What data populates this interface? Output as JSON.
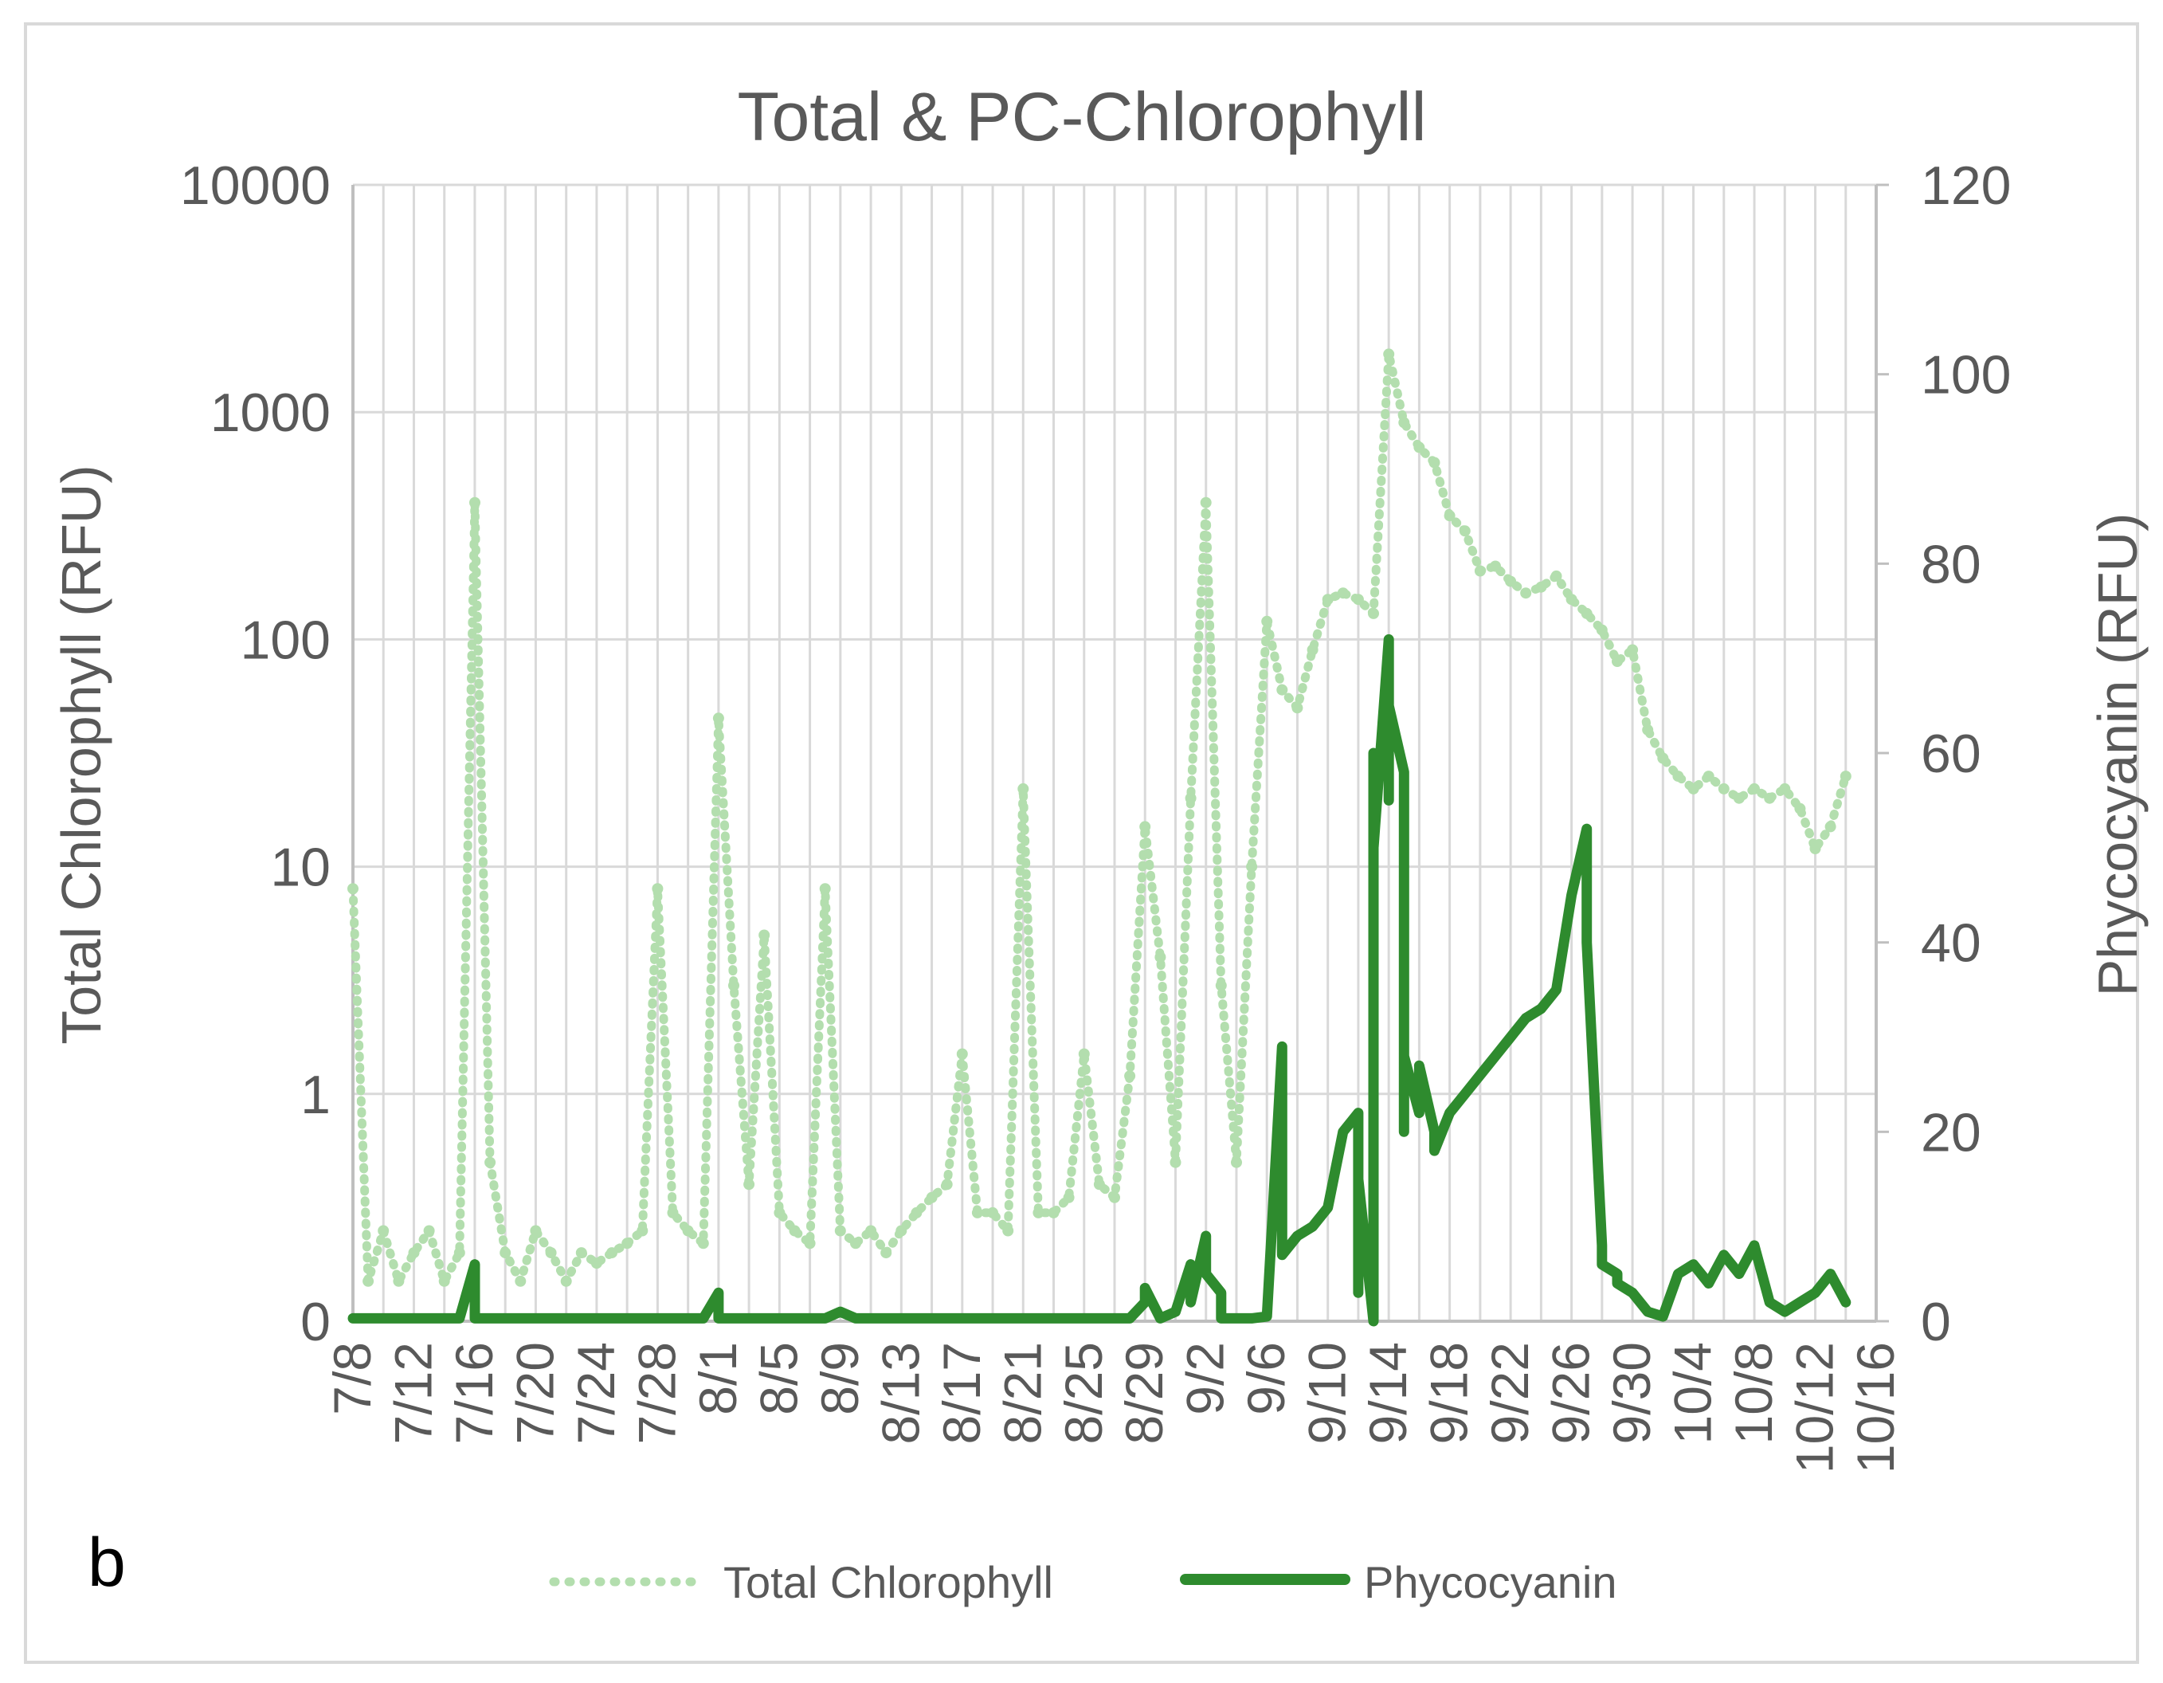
{
  "chart_data": {
    "type": "line",
    "title": "Total & PC-Chlorophyll",
    "panel_label": "b",
    "ylabel": "Total Chlorophyll (RFU)",
    "y2label": "Phycocyanin (RFU)",
    "y_scale": "log",
    "y_ticks": [
      "0",
      "1",
      "10",
      "100",
      "1000",
      "10000"
    ],
    "y2_ticks": [
      "0",
      "20",
      "40",
      "60",
      "80",
      "100",
      "120"
    ],
    "y2lim": [
      0,
      120
    ],
    "x_ticks": [
      "7/8",
      "7/12",
      "7/16",
      "7/20",
      "7/24",
      "7/28",
      "8/1",
      "8/5",
      "8/9",
      "8/13",
      "8/17",
      "8/21",
      "8/25",
      "8/29",
      "9/2",
      "9/6",
      "9/10",
      "9/14",
      "9/18",
      "9/22",
      "9/26",
      "9/30",
      "10/4",
      "10/8",
      "10/12",
      "10/16"
    ],
    "grid": true,
    "legend_position": "bottom",
    "colors": {
      "total_chlorophyll": "#b3deae",
      "phycocyanin": "#2e8b2e"
    },
    "series": [
      {
        "name": "Total Chlorophyll",
        "axis": "left",
        "style": "dotted",
        "x": [
          "7/8",
          "7/9",
          "7/10",
          "7/11",
          "7/12",
          "7/13",
          "7/14",
          "7/15",
          "7/16",
          "7/17",
          "7/18",
          "7/19",
          "7/20",
          "7/21",
          "7/22",
          "7/23",
          "7/24",
          "7/25",
          "7/26",
          "7/27",
          "7/28",
          "7/29",
          "7/30",
          "7/31",
          "8/1",
          "8/2",
          "8/3",
          "8/4",
          "8/5",
          "8/6",
          "8/7",
          "8/8",
          "8/9",
          "8/10",
          "8/11",
          "8/12",
          "8/13",
          "8/14",
          "8/15",
          "8/16",
          "8/17",
          "8/18",
          "8/19",
          "8/20",
          "8/21",
          "8/22",
          "8/23",
          "8/24",
          "8/25",
          "8/26",
          "8/27",
          "8/28",
          "8/29",
          "8/30",
          "8/31",
          "9/1",
          "9/2",
          "9/3",
          "9/4",
          "9/5",
          "9/6",
          "9/7",
          "9/8",
          "9/9",
          "9/10",
          "9/11",
          "9/12",
          "9/13",
          "9/14",
          "9/15",
          "9/16",
          "9/17",
          "9/18",
          "9/19",
          "9/20",
          "9/21",
          "9/22",
          "9/23",
          "9/24",
          "9/25",
          "9/26",
          "9/27",
          "9/28",
          "9/29",
          "9/30",
          "10/1",
          "10/2",
          "10/3",
          "10/4",
          "10/5",
          "10/6",
          "10/7",
          "10/8",
          "10/9",
          "10/10",
          "10/11",
          "10/12",
          "10/13",
          "10/14"
        ],
        "values": [
          8,
          0.15,
          0.25,
          0.15,
          0.2,
          0.25,
          0.15,
          0.2,
          400,
          0.5,
          0.2,
          0.15,
          0.25,
          0.2,
          0.15,
          0.2,
          0.18,
          0.2,
          0.22,
          0.25,
          8,
          0.3,
          0.25,
          0.22,
          45,
          3,
          0.4,
          5,
          0.3,
          0.25,
          0.22,
          8,
          0.25,
          0.22,
          0.25,
          0.2,
          0.25,
          0.3,
          0.35,
          0.4,
          1.5,
          0.3,
          0.3,
          0.25,
          22,
          0.3,
          0.3,
          0.35,
          1.5,
          0.4,
          0.35,
          1.2,
          15,
          4,
          0.5,
          20,
          400,
          3,
          0.5,
          10,
          120,
          60,
          50,
          90,
          150,
          160,
          150,
          130,
          1800,
          900,
          700,
          600,
          350,
          300,
          200,
          210,
          180,
          160,
          170,
          190,
          150,
          130,
          110,
          80,
          90,
          40,
          30,
          25,
          22,
          25,
          22,
          20,
          22,
          20,
          22,
          18,
          12,
          15,
          25
        ]
      },
      {
        "name": "Phycocyanin",
        "axis": "right",
        "style": "solid",
        "x": [
          "7/8",
          "7/15",
          "7/16",
          "7/16",
          "7/17",
          "7/31",
          "8/1",
          "8/1",
          "8/2",
          "8/8",
          "8/9",
          "8/10",
          "8/28",
          "8/29",
          "8/29",
          "8/30",
          "8/31",
          "9/1",
          "9/1",
          "9/2",
          "9/2",
          "9/3",
          "9/3",
          "9/5",
          "9/6",
          "9/7",
          "9/7",
          "9/7",
          "9/8",
          "9/9",
          "9/10",
          "9/11",
          "9/12",
          "9/12",
          "9/12",
          "9/13",
          "9/13",
          "9/13",
          "9/14",
          "9/14",
          "9/14",
          "9/15",
          "9/15",
          "9/15",
          "9/16",
          "9/16",
          "9/16",
          "9/17",
          "9/17",
          "9/18",
          "9/19",
          "9/20",
          "9/21",
          "9/22",
          "9/23",
          "9/24",
          "9/25",
          "9/26",
          "9/27",
          "9/27",
          "9/28",
          "9/28",
          "9/29",
          "9/29",
          "9/30",
          "10/1",
          "10/2",
          "10/3",
          "10/4",
          "10/5",
          "10/6",
          "10/7",
          "10/8",
          "10/9",
          "10/10",
          "10/11",
          "10/12",
          "10/13",
          "10/14"
        ],
        "values": [
          0.3,
          0.3,
          6,
          0.3,
          0.3,
          0.3,
          3,
          0.3,
          0.3,
          0.3,
          1,
          0.3,
          0.3,
          2,
          3.5,
          0.3,
          1,
          6,
          2,
          9,
          5,
          3,
          0.3,
          0.3,
          0.5,
          29,
          8,
          7,
          9,
          10,
          12,
          20,
          22,
          3,
          15,
          0,
          60,
          50,
          72,
          55,
          65,
          58,
          20,
          28,
          22,
          25,
          27,
          20,
          18,
          22,
          24,
          26,
          28,
          30,
          32,
          33,
          35,
          45,
          52,
          40,
          8,
          6,
          5,
          4,
          3,
          1,
          0.5,
          5,
          6,
          4,
          7,
          5,
          8,
          2,
          1,
          2,
          3,
          5,
          2
        ]
      }
    ]
  }
}
